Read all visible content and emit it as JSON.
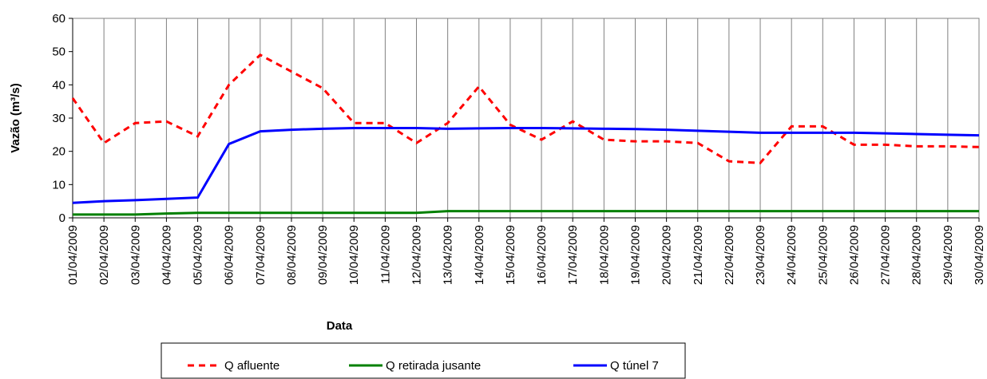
{
  "chart_data": {
    "type": "line",
    "x_label": "Data",
    "y_label": "Vazão (m³/s)",
    "categories": [
      "01/04/2009",
      "02/04/2009",
      "03/04/2009",
      "04/04/2009",
      "05/04/2009",
      "06/04/2009",
      "07/04/2009",
      "08/04/2009",
      "09/04/2009",
      "10/04/2009",
      "11/04/2009",
      "12/04/2009",
      "13/04/2009",
      "14/04/2009",
      "15/04/2009",
      "16/04/2009",
      "17/04/2009",
      "18/04/2009",
      "19/04/2009",
      "20/04/2009",
      "21/04/2009",
      "22/04/2009",
      "23/04/2009",
      "24/04/2009",
      "25/04/2009",
      "26/04/2009",
      "27/04/2009",
      "28/04/2009",
      "29/04/2009",
      "30/04/2009"
    ],
    "series": [
      {
        "name": "Q afluente",
        "color": "#ff0000",
        "dashed": true,
        "values": [
          36,
          22.5,
          28.5,
          29,
          24.5,
          40,
          49,
          44,
          39,
          28.5,
          28.5,
          22.5,
          28.5,
          39.5,
          28,
          23.5,
          29,
          23.5,
          23,
          23,
          22.5,
          17,
          16.5,
          27.5,
          27.5,
          22,
          22,
          21.5,
          21.5,
          21.3
        ]
      },
      {
        "name": "Q retirada jusante",
        "color": "#008000",
        "dashed": false,
        "values": [
          1,
          1,
          1,
          1.3,
          1.5,
          1.5,
          1.5,
          1.5,
          1.5,
          1.5,
          1.5,
          1.5,
          2,
          2,
          2,
          2,
          2,
          2,
          2,
          2,
          2,
          2,
          2,
          2,
          2,
          2,
          2,
          2,
          2,
          2
        ]
      },
      {
        "name": "Q túnel 7",
        "color": "#0000ff",
        "dashed": false,
        "values": [
          4.5,
          5,
          5.3,
          5.7,
          6.1,
          22.2,
          26,
          26.5,
          26.8,
          27,
          27,
          27,
          26.8,
          26.9,
          27,
          27,
          26.9,
          26.8,
          26.7,
          26.5,
          26.2,
          25.9,
          25.6,
          25.6,
          25.6,
          25.6,
          25.4,
          25.2,
          25,
          24.8
        ]
      }
    ],
    "ylim": [
      0,
      60
    ],
    "yticks": [
      0,
      10,
      20,
      30,
      40,
      50,
      60
    ],
    "grid": true
  }
}
